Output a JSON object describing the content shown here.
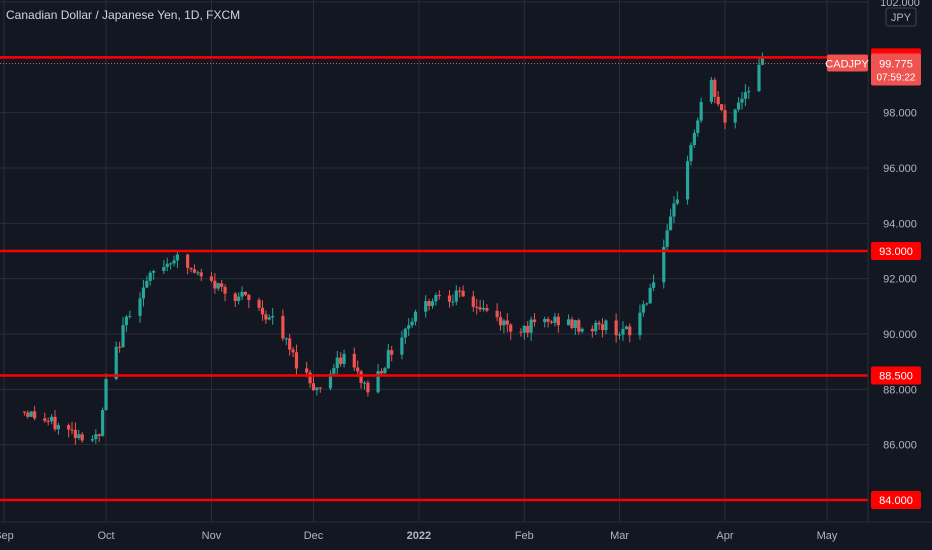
{
  "title": "Canadian Dollar / Japanese Yen, 1D, FXCM",
  "currency_label": "JPY",
  "chart_data": {
    "type": "candlestick",
    "symbol": "CADJPY",
    "interval": "1D",
    "source": "FXCM",
    "currency": "JPY",
    "ylim": [
      84.0,
      102.0
    ],
    "yticks": [
      "102.000",
      "98.000",
      "96.000",
      "94.000",
      "92.000",
      "90.000",
      "88.000",
      "86.000"
    ],
    "xticks": [
      {
        "label": "Sep",
        "date": "2021-09-01"
      },
      {
        "label": "Oct",
        "date": "2021-10-01"
      },
      {
        "label": "Nov",
        "date": "2021-11-01"
      },
      {
        "label": "Dec",
        "date": "2021-12-01"
      },
      {
        "label": "2022",
        "date": "2022-01-01"
      },
      {
        "label": "Feb",
        "date": "2022-02-01"
      },
      {
        "label": "Mar",
        "date": "2022-03-01"
      },
      {
        "label": "Apr",
        "date": "2022-04-01"
      },
      {
        "label": "May",
        "date": "2022-05-01"
      }
    ],
    "horizontal_levels": [
      {
        "value": 100.0,
        "label": "100.000"
      },
      {
        "value": 93.0,
        "label": "93.000"
      },
      {
        "value": 88.5,
        "label": "88.500"
      },
      {
        "value": 84.0,
        "label": "84.000"
      }
    ],
    "last_price": {
      "value": 99.775,
      "label": "99.775",
      "countdown": "07:59:22",
      "symbol": "CADJPY"
    },
    "colors": {
      "up": "#26a69a",
      "down": "#ef5350",
      "level": "#ff0000",
      "background": "#131722",
      "grid": "#2a2e39",
      "text": "#b2b5be"
    },
    "grid": true,
    "close_series": [
      {
        "date": "2021-09-07",
        "close": 87.2
      },
      {
        "date": "2021-09-20",
        "close": 86.5
      },
      {
        "date": "2021-09-29",
        "close": 86.2
      },
      {
        "date": "2021-10-01",
        "close": 88.2
      },
      {
        "date": "2021-10-08",
        "close": 90.9
      },
      {
        "date": "2021-10-15",
        "close": 92.2
      },
      {
        "date": "2021-10-21",
        "close": 92.8
      },
      {
        "date": "2021-10-29",
        "close": 92.0
      },
      {
        "date": "2021-11-05",
        "close": 91.6
      },
      {
        "date": "2021-11-12",
        "close": 91.2
      },
      {
        "date": "2021-11-19",
        "close": 90.5
      },
      {
        "date": "2021-11-26",
        "close": 89.0
      },
      {
        "date": "2021-12-02",
        "close": 88.0
      },
      {
        "date": "2021-12-10",
        "close": 89.2
      },
      {
        "date": "2021-12-17",
        "close": 88.0
      },
      {
        "date": "2021-12-24",
        "close": 89.4
      },
      {
        "date": "2021-12-31",
        "close": 90.8
      },
      {
        "date": "2022-01-07",
        "close": 91.5
      },
      {
        "date": "2022-01-14",
        "close": 91.3
      },
      {
        "date": "2022-01-21",
        "close": 90.8
      },
      {
        "date": "2022-01-28",
        "close": 90.2
      },
      {
        "date": "2022-02-04",
        "close": 90.3
      },
      {
        "date": "2022-02-11",
        "close": 90.5
      },
      {
        "date": "2022-02-18",
        "close": 90.2
      },
      {
        "date": "2022-02-25",
        "close": 90.3
      },
      {
        "date": "2022-03-04",
        "close": 90.0
      },
      {
        "date": "2022-03-09",
        "close": 91.3
      },
      {
        "date": "2022-03-15",
        "close": 93.5
      },
      {
        "date": "2022-03-18",
        "close": 95.0
      },
      {
        "date": "2022-03-22",
        "close": 96.8
      },
      {
        "date": "2022-03-25",
        "close": 98.3
      },
      {
        "date": "2022-03-28",
        "close": 99.0
      },
      {
        "date": "2022-04-01",
        "close": 97.6
      },
      {
        "date": "2022-04-06",
        "close": 98.6
      },
      {
        "date": "2022-04-12",
        "close": 99.8
      }
    ]
  }
}
